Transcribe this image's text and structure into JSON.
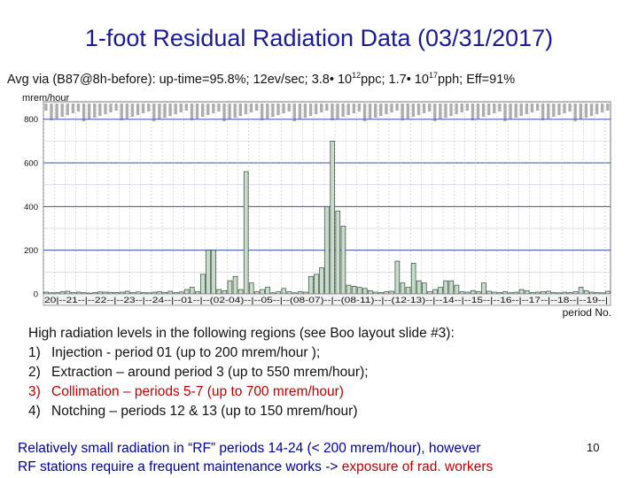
{
  "slide": {
    "title": "1-foot Residual Radiation Data (03/31/2017)",
    "subtitle_pre": "Avg via (B87@8h-before): up-time=95.8%; 12ev/sec; 3.8• 10",
    "subtitle_sup1": "12",
    "subtitle_mid": "ppc; 1.7• 10",
    "subtitle_sup2": "17",
    "subtitle_post": "pph; Eff=91%",
    "notes_intro": "High radiation levels in the following regions (see Boo layout slide #3):",
    "notes": [
      {
        "num": "1)",
        "text": "Injection - period 01 (up to 200 mrem/hour );",
        "red": false
      },
      {
        "num": "2)",
        "text": "Extraction – around period 3 (up to 550 mrem/hour);",
        "red": false
      },
      {
        "num": "3)",
        "text": "Collimation – periods 5-7 (up to 700 mrem/hour)",
        "red": true
      },
      {
        "num": "4)",
        "text": "Notching – periods 12 & 13 (up to 150 mrem/hour)",
        "red": false
      }
    ],
    "footer_line1": "Relatively small radiation in “RF” periods 14-24 (< 200 mrem/hour), however",
    "footer_line2_pre": "RF stations require a frequent maintenance works -> ",
    "footer_line2_hl": "exposure of rad. workers",
    "page_number": "10"
  },
  "chart_data": {
    "type": "bar",
    "ylabel": "mrem/hour",
    "xlabel": "period No.",
    "ylim": [
      0,
      880
    ],
    "yticks": [
      0,
      200,
      400,
      600,
      800
    ],
    "grid": true,
    "period_axis": "20|--21--|--22--|--23--|--24--|--01--|--(02-04)--|--05--|--(08-07)--|--(08-11)--|--(12-13)--|--14--|--15--|--16--|--17--|--18--|--19--|",
    "values": [
      8,
      5,
      6,
      10,
      12,
      6,
      8,
      6,
      4,
      6,
      9,
      8,
      7,
      6,
      8,
      12,
      6,
      9,
      6,
      5,
      8,
      10,
      7,
      12,
      6,
      9,
      20,
      30,
      10,
      90,
      200,
      200,
      20,
      15,
      60,
      80,
      20,
      560,
      50,
      10,
      20,
      30,
      5,
      10,
      25,
      10,
      5,
      10,
      8,
      80,
      90,
      120,
      400,
      700,
      380,
      310,
      40,
      35,
      30,
      25,
      15,
      8,
      6,
      10,
      12,
      150,
      50,
      30,
      140,
      60,
      50,
      10,
      20,
      30,
      60,
      60,
      40,
      10,
      8,
      15,
      10,
      50,
      12,
      8,
      6,
      10,
      5,
      8,
      20,
      15,
      6,
      8,
      10,
      12,
      6,
      5,
      8,
      6,
      10,
      30,
      15,
      8,
      6,
      5,
      12
    ]
  }
}
